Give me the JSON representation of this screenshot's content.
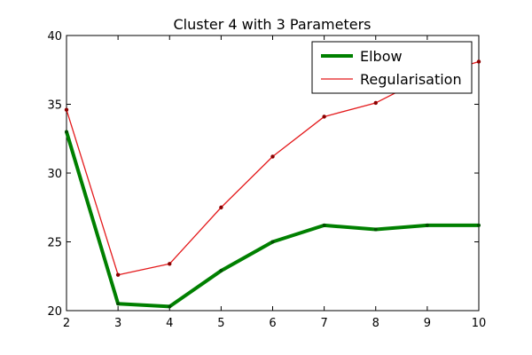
{
  "chart_data": {
    "type": "line",
    "title": "Cluster 4 with 3 Parameters",
    "xlabel": "",
    "ylabel": "",
    "x": [
      2,
      3,
      4,
      5,
      6,
      7,
      8,
      9,
      10
    ],
    "xlim": [
      2,
      10
    ],
    "ylim": [
      20,
      40
    ],
    "xticks": [
      "2",
      "3",
      "4",
      "5",
      "6",
      "7",
      "8",
      "9",
      "10"
    ],
    "yticks": [
      "20",
      "25",
      "30",
      "35",
      "40"
    ],
    "grid": false,
    "legend_position": "top-right",
    "series": [
      {
        "name": "Elbow",
        "color": "#008000",
        "values": [
          33.0,
          20.5,
          20.3,
          22.9,
          25.0,
          26.2,
          25.9,
          26.2,
          26.2
        ]
      },
      {
        "name": "Regularisation",
        "color": "#e41a1c",
        "values": [
          34.6,
          22.6,
          23.4,
          27.5,
          31.2,
          34.1,
          35.1,
          37.0,
          38.1
        ]
      }
    ]
  }
}
